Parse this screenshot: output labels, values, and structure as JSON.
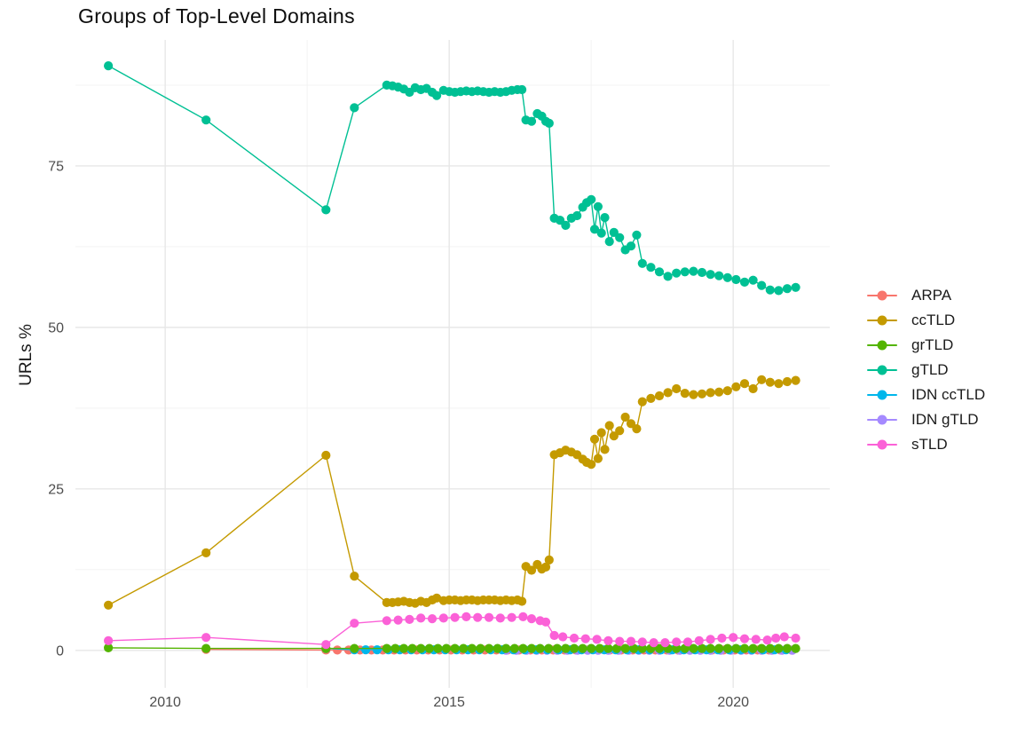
{
  "chart_data": {
    "type": "line",
    "title": "Groups of Top-Level Domains",
    "xlabel": "",
    "ylabel": "URLs %",
    "x_ticks": [
      2010,
      2015,
      2020
    ],
    "y_ticks": [
      0,
      25,
      50,
      75
    ],
    "x_minor": [
      2012.5,
      2017.5
    ],
    "y_minor": [
      12.5,
      37.5,
      62.5,
      87.5
    ],
    "xlim": [
      2008.42,
      2021.7
    ],
    "ylim": [
      -5.8,
      94.5
    ],
    "grid": "on",
    "legend_position": "right",
    "background_color": "#FFFFFF",
    "grid_major_color": "#E7E7E7",
    "grid_minor_color": "#F3F3F3",
    "axis_text_color": "#4D4D4D",
    "title_color": "#0D0D0D",
    "draw_order": [
      "ARPA",
      "IDN gTLD",
      "IDN ccTLD",
      "ccTLD",
      "grTLD",
      "gTLD",
      "sTLD"
    ],
    "series": [
      {
        "name": "ARPA",
        "color": "#F8766D",
        "points": [
          [
            2010.72,
            0.15
          ]
        ],
        "flat": {
          "from": 2012.83,
          "to": 2021.1,
          "step": 0.2,
          "value": 0.05
        }
      },
      {
        "name": "ccTLD",
        "color": "#C49A00",
        "points": [
          [
            2009.0,
            7.0
          ],
          [
            2010.72,
            15.1
          ],
          [
            2012.83,
            30.2
          ],
          [
            2013.33,
            11.5
          ],
          [
            2013.9,
            7.4
          ],
          [
            2014.0,
            7.4
          ],
          [
            2014.1,
            7.5
          ],
          [
            2014.2,
            7.6
          ],
          [
            2014.3,
            7.4
          ],
          [
            2014.4,
            7.3
          ],
          [
            2014.5,
            7.6
          ],
          [
            2014.6,
            7.4
          ],
          [
            2014.7,
            7.8
          ],
          [
            2014.78,
            8.1
          ],
          [
            2014.9,
            7.7
          ],
          [
            2015.0,
            7.8
          ],
          [
            2015.1,
            7.8
          ],
          [
            2015.2,
            7.7
          ],
          [
            2015.3,
            7.8
          ],
          [
            2015.4,
            7.8
          ],
          [
            2015.5,
            7.7
          ],
          [
            2015.6,
            7.8
          ],
          [
            2015.7,
            7.8
          ],
          [
            2015.8,
            7.8
          ],
          [
            2015.9,
            7.7
          ],
          [
            2016.0,
            7.8
          ],
          [
            2016.1,
            7.7
          ],
          [
            2016.2,
            7.8
          ],
          [
            2016.28,
            7.6
          ],
          [
            2016.35,
            13.0
          ],
          [
            2016.45,
            12.4
          ],
          [
            2016.55,
            13.3
          ],
          [
            2016.63,
            12.6
          ],
          [
            2016.7,
            12.9
          ],
          [
            2016.76,
            14.0
          ],
          [
            2016.85,
            30.3
          ],
          [
            2016.95,
            30.6
          ],
          [
            2017.05,
            31.0
          ],
          [
            2017.15,
            30.7
          ],
          [
            2017.25,
            30.3
          ],
          [
            2017.35,
            29.6
          ],
          [
            2017.42,
            29.1
          ],
          [
            2017.5,
            28.8
          ],
          [
            2017.56,
            32.7
          ],
          [
            2017.62,
            29.7
          ],
          [
            2017.68,
            33.7
          ],
          [
            2017.74,
            31.1
          ],
          [
            2017.82,
            34.8
          ],
          [
            2017.9,
            33.2
          ],
          [
            2018.0,
            34.0
          ],
          [
            2018.1,
            36.1
          ],
          [
            2018.2,
            35.1
          ],
          [
            2018.3,
            34.3
          ],
          [
            2018.4,
            38.5
          ],
          [
            2018.55,
            39.0
          ],
          [
            2018.7,
            39.4
          ],
          [
            2018.85,
            39.9
          ],
          [
            2019.0,
            40.5
          ],
          [
            2019.15,
            39.8
          ],
          [
            2019.3,
            39.6
          ],
          [
            2019.45,
            39.7
          ],
          [
            2019.6,
            39.9
          ],
          [
            2019.75,
            40.0
          ],
          [
            2019.9,
            40.2
          ],
          [
            2020.05,
            40.8
          ],
          [
            2020.2,
            41.3
          ],
          [
            2020.35,
            40.5
          ],
          [
            2020.5,
            41.9
          ],
          [
            2020.65,
            41.5
          ],
          [
            2020.8,
            41.3
          ],
          [
            2020.95,
            41.6
          ],
          [
            2021.1,
            41.8
          ]
        ]
      },
      {
        "name": "grTLD",
        "color": "#53B400",
        "points": [
          [
            2009.0,
            0.4
          ],
          [
            2010.72,
            0.3
          ],
          [
            2012.83,
            0.3
          ],
          [
            2013.33,
            0.3
          ]
        ],
        "flat": {
          "from": 2013.9,
          "to": 2021.1,
          "step": 0.15,
          "value": 0.3
        }
      },
      {
        "name": "gTLD",
        "color": "#00C094",
        "points": [
          [
            2009.0,
            90.5
          ],
          [
            2010.72,
            82.1
          ],
          [
            2012.83,
            68.2
          ],
          [
            2013.33,
            84.0
          ],
          [
            2013.9,
            87.5
          ],
          [
            2014.0,
            87.4
          ],
          [
            2014.1,
            87.2
          ],
          [
            2014.2,
            86.9
          ],
          [
            2014.3,
            86.4
          ],
          [
            2014.4,
            87.1
          ],
          [
            2014.5,
            86.8
          ],
          [
            2014.6,
            87.0
          ],
          [
            2014.7,
            86.4
          ],
          [
            2014.78,
            85.9
          ],
          [
            2014.9,
            86.7
          ],
          [
            2015.0,
            86.5
          ],
          [
            2015.1,
            86.4
          ],
          [
            2015.2,
            86.5
          ],
          [
            2015.3,
            86.6
          ],
          [
            2015.4,
            86.5
          ],
          [
            2015.5,
            86.6
          ],
          [
            2015.6,
            86.5
          ],
          [
            2015.7,
            86.4
          ],
          [
            2015.8,
            86.5
          ],
          [
            2015.9,
            86.4
          ],
          [
            2016.0,
            86.5
          ],
          [
            2016.1,
            86.7
          ],
          [
            2016.2,
            86.8
          ],
          [
            2016.28,
            86.8
          ],
          [
            2016.35,
            82.1
          ],
          [
            2016.45,
            81.9
          ],
          [
            2016.55,
            83.1
          ],
          [
            2016.63,
            82.7
          ],
          [
            2016.7,
            81.9
          ],
          [
            2016.76,
            81.6
          ],
          [
            2016.85,
            66.9
          ],
          [
            2016.95,
            66.6
          ],
          [
            2017.05,
            65.8
          ],
          [
            2017.15,
            66.9
          ],
          [
            2017.25,
            67.3
          ],
          [
            2017.35,
            68.6
          ],
          [
            2017.42,
            69.3
          ],
          [
            2017.5,
            69.8
          ],
          [
            2017.56,
            65.2
          ],
          [
            2017.62,
            68.7
          ],
          [
            2017.68,
            64.6
          ],
          [
            2017.74,
            67.0
          ],
          [
            2017.82,
            63.3
          ],
          [
            2017.9,
            64.7
          ],
          [
            2018.0,
            63.9
          ],
          [
            2018.1,
            62.0
          ],
          [
            2018.2,
            62.6
          ],
          [
            2018.3,
            64.3
          ],
          [
            2018.4,
            59.9
          ],
          [
            2018.55,
            59.3
          ],
          [
            2018.7,
            58.6
          ],
          [
            2018.85,
            57.9
          ],
          [
            2019.0,
            58.4
          ],
          [
            2019.15,
            58.6
          ],
          [
            2019.3,
            58.7
          ],
          [
            2019.45,
            58.5
          ],
          [
            2019.6,
            58.2
          ],
          [
            2019.75,
            58.0
          ],
          [
            2019.9,
            57.7
          ],
          [
            2020.05,
            57.4
          ],
          [
            2020.2,
            57.0
          ],
          [
            2020.35,
            57.3
          ],
          [
            2020.5,
            56.5
          ],
          [
            2020.65,
            55.8
          ],
          [
            2020.8,
            55.7
          ],
          [
            2020.95,
            56.0
          ],
          [
            2021.1,
            56.2
          ]
        ]
      },
      {
        "name": "IDN ccTLD",
        "color": "#00B6EB",
        "points": [
          [
            2012.83,
            0.3
          ]
        ],
        "flat": {
          "from": 2013.33,
          "to": 2021.1,
          "step": 0.2,
          "value": 0.1
        }
      },
      {
        "name": "IDN gTLD",
        "color": "#A58AFF",
        "points": [],
        "flat": {
          "from": 2016.0,
          "to": 2021.1,
          "step": 0.18,
          "value": 0.02
        }
      },
      {
        "name": "sTLD",
        "color": "#FB61D7",
        "points": [
          [
            2009.0,
            1.5
          ],
          [
            2010.72,
            2.0
          ],
          [
            2012.83,
            0.9
          ],
          [
            2013.33,
            4.2
          ],
          [
            2013.9,
            4.6
          ],
          [
            2014.1,
            4.7
          ],
          [
            2014.3,
            4.8
          ],
          [
            2014.5,
            5.0
          ],
          [
            2014.7,
            4.9
          ],
          [
            2014.9,
            5.0
          ],
          [
            2015.1,
            5.1
          ],
          [
            2015.3,
            5.2
          ],
          [
            2015.5,
            5.1
          ],
          [
            2015.7,
            5.1
          ],
          [
            2015.9,
            5.0
          ],
          [
            2016.1,
            5.1
          ],
          [
            2016.3,
            5.2
          ],
          [
            2016.45,
            4.9
          ],
          [
            2016.6,
            4.6
          ],
          [
            2016.7,
            4.4
          ],
          [
            2016.85,
            2.3
          ],
          [
            2017.0,
            2.1
          ],
          [
            2017.2,
            1.9
          ],
          [
            2017.4,
            1.8
          ],
          [
            2017.6,
            1.7
          ],
          [
            2017.8,
            1.5
          ],
          [
            2018.0,
            1.4
          ],
          [
            2018.2,
            1.4
          ],
          [
            2018.4,
            1.3
          ],
          [
            2018.6,
            1.2
          ],
          [
            2018.8,
            1.2
          ],
          [
            2019.0,
            1.3
          ],
          [
            2019.2,
            1.3
          ],
          [
            2019.4,
            1.5
          ],
          [
            2019.6,
            1.7
          ],
          [
            2019.8,
            1.9
          ],
          [
            2020.0,
            2.0
          ],
          [
            2020.2,
            1.8
          ],
          [
            2020.4,
            1.7
          ],
          [
            2020.6,
            1.6
          ],
          [
            2020.75,
            1.9
          ],
          [
            2020.9,
            2.1
          ],
          [
            2021.1,
            1.9
          ]
        ]
      }
    ]
  }
}
